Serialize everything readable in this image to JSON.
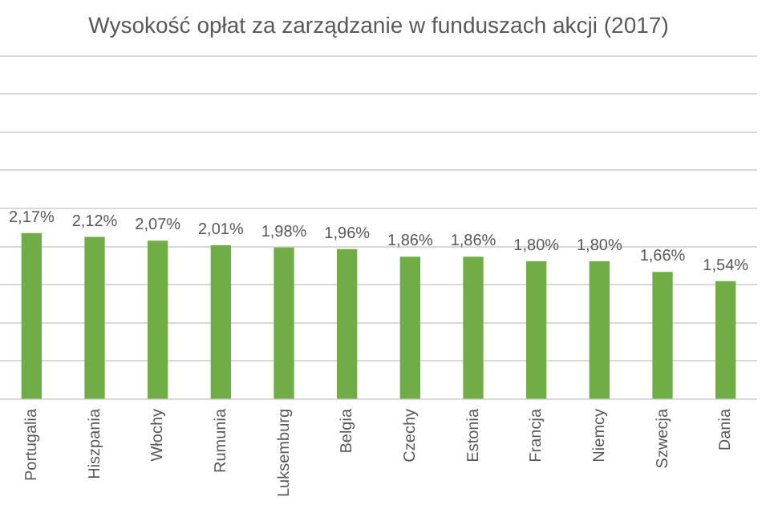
{
  "chart_data": {
    "type": "bar",
    "title": "Wysokość opłat za zarządzanie w funduszach akcji (2017)",
    "categories": [
      "Portugalia",
      "Hiszpania",
      "Włochy",
      "Rumunia",
      "Luksemburg",
      "Belgia",
      "Czechy",
      "Estonia",
      "Francja",
      "Niemcy",
      "Szwecja",
      "Dania"
    ],
    "values": [
      2.17,
      2.12,
      2.07,
      2.01,
      1.98,
      1.96,
      1.86,
      1.86,
      1.8,
      1.8,
      1.66,
      1.54
    ],
    "value_labels": [
      "2,17%",
      "2,12%",
      "2,07%",
      "2,01%",
      "1,98%",
      "1,96%",
      "1,86%",
      "1,86%",
      "1,80%",
      "1,80%",
      "1,66%",
      "1,54%"
    ],
    "color": "#70ad47",
    "ylim": [
      0,
      4.5
    ],
    "yticks": [
      {
        "value": 0,
        "label": null
      },
      {
        "value": 0.5,
        "label": null
      },
      {
        "value": 1,
        "label": null
      },
      {
        "value": 1.5,
        "label": null
      },
      {
        "value": 2,
        "label": null
      },
      {
        "value": 2.5,
        "label": null
      },
      {
        "value": 3,
        "label": null
      },
      {
        "value": 3.5,
        "label": null
      },
      {
        "value": 4,
        "label": null
      },
      {
        "value": 4.5,
        "label": null
      }
    ],
    "grid": "y",
    "legend": false,
    "tick_labels": "x"
  }
}
